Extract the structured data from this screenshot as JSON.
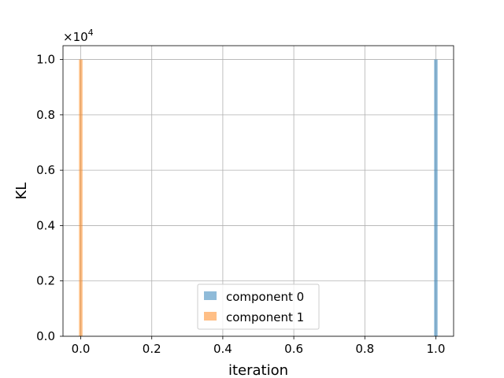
{
  "chart_data": {
    "type": "bar",
    "title": "",
    "xlabel": "iteration",
    "ylabel": "KL",
    "y_multiplier_label": "×10",
    "y_multiplier_exponent": "4",
    "xlim": [
      -0.05,
      1.05
    ],
    "ylim": [
      0,
      10500
    ],
    "x_ticks": [
      0.0,
      0.2,
      0.4,
      0.6,
      0.8,
      1.0
    ],
    "x_tick_labels": [
      "0.0",
      "0.2",
      "0.4",
      "0.6",
      "0.8",
      "1.0"
    ],
    "y_ticks": [
      0,
      2000,
      4000,
      6000,
      8000,
      10000
    ],
    "y_tick_labels": [
      "0.0",
      "0.2",
      "0.4",
      "0.6",
      "0.8",
      "1.0"
    ],
    "grid": true,
    "legend_position": "bottom-center",
    "bar_width": 0.01,
    "series": [
      {
        "name": "component 0",
        "color": "#1f77b4",
        "alpha": 0.5,
        "x": [
          1.0
        ],
        "values": [
          10000
        ]
      },
      {
        "name": "component 1",
        "color": "#ff7f0e",
        "alpha": 0.5,
        "x": [
          0.0
        ],
        "values": [
          10000
        ]
      }
    ]
  }
}
